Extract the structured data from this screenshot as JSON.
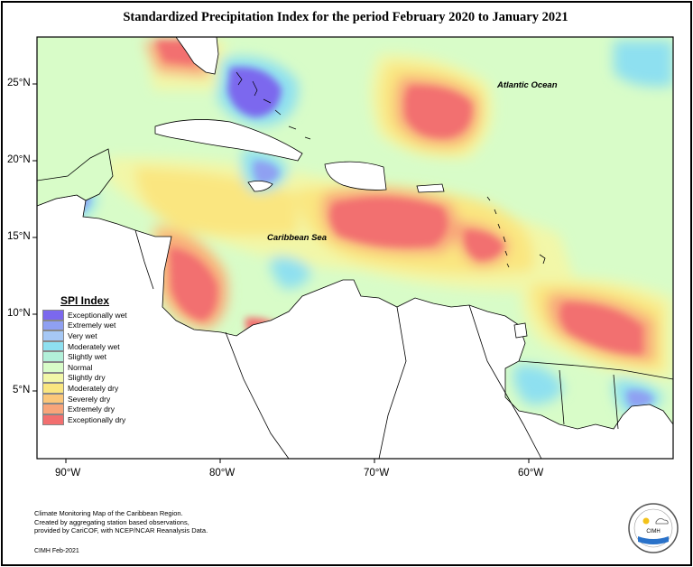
{
  "title": "Standardized Precipitation Index for the period February 2020 to January 2021",
  "labels": {
    "atlantic": "Atlantic Ocean",
    "caribbean": "Caribbean Sea"
  },
  "x_ticks": [
    "90°W",
    "80°W",
    "70°W",
    "60°W"
  ],
  "y_ticks": [
    "25°N",
    "20°N",
    "15°N",
    "10°N",
    "5°N"
  ],
  "legend": {
    "title": "SPI Index",
    "items": [
      {
        "label": "Exceptionally wet",
        "color": "#7b68ee"
      },
      {
        "label": "Extremely wet",
        "color": "#8fa0f2"
      },
      {
        "label": "Very wet",
        "color": "#a6c8f5"
      },
      {
        "label": "Moderately wet",
        "color": "#8ee0f0"
      },
      {
        "label": "Slightly wet",
        "color": "#b2f0d9"
      },
      {
        "label": "Normal",
        "color": "#d8fcc8"
      },
      {
        "label": "Slightly dry",
        "color": "#f2f7a8"
      },
      {
        "label": "Moderately dry",
        "color": "#fae680"
      },
      {
        "label": "Severely dry",
        "color": "#fbc77a"
      },
      {
        "label": "Extremely dry",
        "color": "#f8a57a"
      },
      {
        "label": "Exceptionally dry",
        "color": "#f26f6f"
      }
    ]
  },
  "credit": {
    "line1": "Climate Monitoring Map of the Caribbean Region.",
    "line2": "Created by aggregating station based observations,",
    "line3": "provided by CariCOF, with NCEP/NCAR Reanalysis Data.",
    "date": "CIMH Feb-2021"
  },
  "logo": {
    "text": "CIMH"
  }
}
